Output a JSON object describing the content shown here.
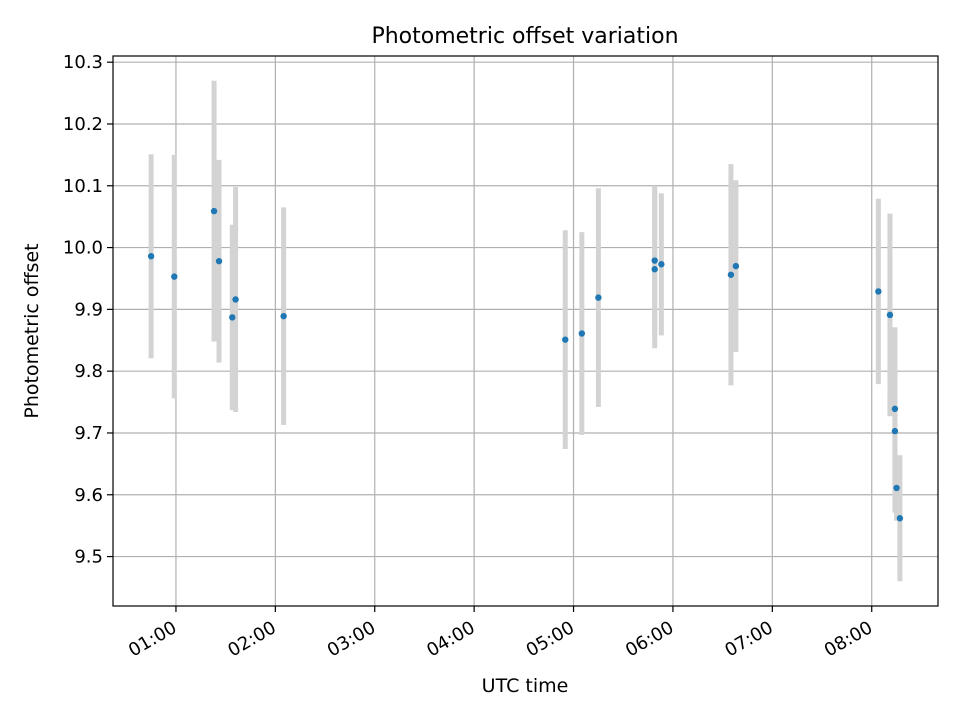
{
  "chart_data": {
    "type": "scatter",
    "title": "Photometric offset variation",
    "xlabel": "UTC time",
    "ylabel": "Photometric offset",
    "x_ticks": [
      "01:00",
      "02:00",
      "03:00",
      "04:00",
      "05:00",
      "06:00",
      "07:00",
      "08:00"
    ],
    "y_ticks": [
      "9.5",
      "9.6",
      "9.7",
      "9.8",
      "9.9",
      "10.0",
      "10.1",
      "10.2",
      "10.3"
    ],
    "xlim": [
      "00:22",
      "08:40"
    ],
    "ylim": [
      9.42,
      10.31
    ],
    "grid": true,
    "marker_color": "#1f77b4",
    "errorbar_color": "#d3d3d3",
    "series": [
      {
        "points": [
          {
            "x": "00:45",
            "y": 9.986,
            "yerr": 0.165
          },
          {
            "x": "00:59",
            "y": 9.953,
            "yerr": 0.197
          },
          {
            "x": "01:23",
            "y": 10.059,
            "yerr": 0.211
          },
          {
            "x": "01:26",
            "y": 9.978,
            "yerr": 0.164
          },
          {
            "x": "01:34",
            "y": 9.887,
            "yerr": 0.15
          },
          {
            "x": "01:36",
            "y": 9.916,
            "yerr": 0.182
          },
          {
            "x": "02:05",
            "y": 9.889,
            "yerr": 0.176
          },
          {
            "x": "04:55",
            "y": 9.851,
            "yerr": 0.177
          },
          {
            "x": "05:05",
            "y": 9.861,
            "yerr": 0.164
          },
          {
            "x": "05:15",
            "y": 9.919,
            "yerr": 0.177
          },
          {
            "x": "05:49",
            "y": 9.979,
            "yerr": 0.121
          },
          {
            "x": "05:49",
            "y": 9.965,
            "yerr": 0.128
          },
          {
            "x": "05:53",
            "y": 9.973,
            "yerr": 0.115
          },
          {
            "x": "06:35",
            "y": 9.956,
            "yerr": 0.179
          },
          {
            "x": "06:38",
            "y": 9.97,
            "yerr": 0.139
          },
          {
            "x": "08:04",
            "y": 9.929,
            "yerr": 0.15
          },
          {
            "x": "08:11",
            "y": 9.891,
            "yerr": 0.164
          },
          {
            "x": "08:14",
            "y": 9.739,
            "yerr": 0.132
          },
          {
            "x": "08:14",
            "y": 9.703,
            "yerr": 0.132
          },
          {
            "x": "08:15",
            "y": 9.611,
            "yerr": 0.053
          },
          {
            "x": "08:17",
            "y": 9.562,
            "yerr": 0.102
          }
        ]
      }
    ]
  }
}
